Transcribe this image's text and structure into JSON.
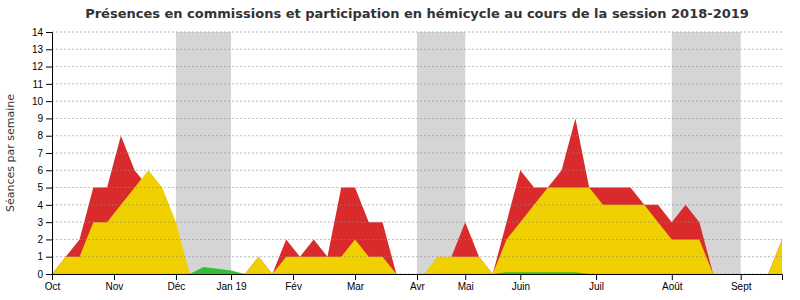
{
  "chart_data": {
    "type": "area",
    "title": "Présences en commissions et participation en hémicycle au cours de la session 2018-2019",
    "ylabel": "Séances par semaine",
    "x": [
      0,
      1,
      2,
      3,
      4,
      5,
      6,
      7,
      8,
      9,
      10,
      11,
      12,
      13,
      14,
      15,
      16,
      17,
      18,
      19,
      20,
      21,
      22,
      23,
      24,
      25,
      26,
      27,
      28,
      29,
      30,
      31,
      32,
      33,
      34,
      35,
      36,
      37,
      38,
      39,
      40,
      41,
      42,
      43,
      44,
      45,
      46,
      47,
      48,
      49,
      50,
      51,
      52,
      53
    ],
    "xlim": [
      0,
      53
    ],
    "xticks": [
      {
        "value": 0,
        "label": "Oct"
      },
      {
        "value": 4.5,
        "label": "Nov"
      },
      {
        "value": 9,
        "label": "Déc"
      },
      {
        "value": 13,
        "label": "Jan 19"
      },
      {
        "value": 17.5,
        "label": "Fév"
      },
      {
        "value": 22,
        "label": "Mar"
      },
      {
        "value": 26.5,
        "label": "Avr"
      },
      {
        "value": 30,
        "label": "Mai"
      },
      {
        "value": 34,
        "label": "Juin"
      },
      {
        "value": 39.5,
        "label": "Juil"
      },
      {
        "value": 45,
        "label": "Août"
      },
      {
        "value": 50,
        "label": "Sept"
      }
    ],
    "ylim": [
      0,
      14
    ],
    "yticks": [
      0,
      1,
      2,
      3,
      4,
      5,
      6,
      7,
      8,
      9,
      10,
      11,
      12,
      13,
      14
    ],
    "grid": true,
    "stacked": false,
    "shaded_ranges": [
      [
        9,
        13
      ],
      [
        26.5,
        30
      ],
      [
        45,
        50
      ]
    ],
    "series": [
      {
        "color": "#d92b2b",
        "values": [
          0,
          1,
          2,
          5,
          5,
          8,
          6,
          5,
          4,
          2,
          0,
          0,
          0,
          0,
          0,
          1,
          0,
          2,
          1,
          2,
          1,
          5,
          5,
          3,
          3,
          0,
          0,
          0,
          0,
          1,
          3,
          1,
          0,
          3,
          6,
          5,
          5,
          6,
          9,
          5,
          5,
          5,
          5,
          4,
          4,
          3,
          4,
          3,
          0,
          0,
          0,
          0,
          0,
          2
        ]
      },
      {
        "color": "#f0d000",
        "values": [
          0,
          1,
          1,
          3,
          3,
          4,
          5,
          6,
          5,
          3,
          0,
          0,
          0,
          0,
          0,
          1,
          0,
          1,
          1,
          1,
          1,
          1,
          2,
          1,
          1,
          0,
          0,
          0,
          1,
          1,
          1,
          1,
          0,
          2,
          3,
          4,
          5,
          5,
          5,
          5,
          4,
          4,
          4,
          4,
          3,
          2,
          2,
          2,
          0,
          0,
          0,
          0,
          0,
          2
        ]
      },
      {
        "color": "#30c030",
        "values": [
          0,
          0,
          0,
          0,
          0,
          0,
          0,
          0,
          0,
          0,
          0,
          0.4,
          0.3,
          0.2,
          0,
          0,
          0,
          0,
          0,
          0,
          0,
          0,
          0,
          0,
          0,
          0,
          0,
          0,
          0,
          0,
          0,
          0,
          0,
          0.1,
          0.1,
          0.1,
          0.1,
          0.1,
          0.1,
          0,
          0,
          0,
          0,
          0,
          0,
          0,
          0,
          0,
          0,
          0,
          0,
          0,
          0,
          0
        ]
      }
    ]
  }
}
